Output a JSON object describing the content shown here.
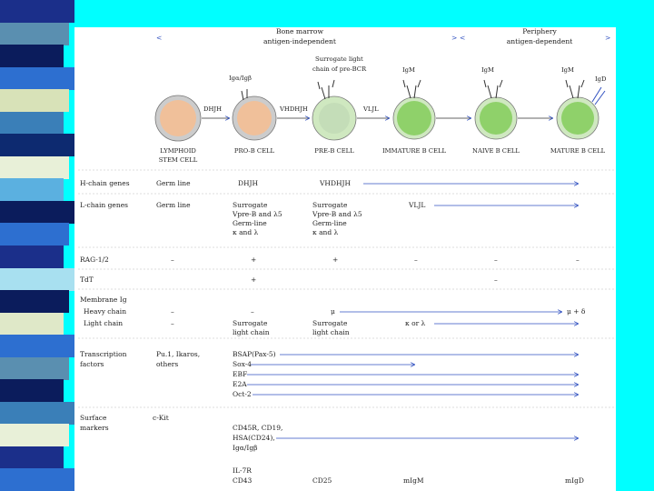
{
  "colors": {
    "background": "#00ffff",
    "panel": "#ffffff",
    "stem_cell": "#f0c09a",
    "b_cell_inner": "#8fd16a",
    "b_cell_ring": "#cfe8c0",
    "line": "#3050c0",
    "stripes": [
      "#1b2f8a",
      "#5a8fb0",
      "#0b1c5c",
      "#2d6fd0",
      "#d8e2b8",
      "#3a7fb8",
      "#0d2a70",
      "#e8f0d8",
      "#5bb0e0",
      "#0b1c5c",
      "#2d6fd0",
      "#1b2f8a",
      "#a8e0f0",
      "#0b1c5c",
      "#dfe8c8",
      "#2d6fd0",
      "#5a8fb0",
      "#0b1c5c",
      "#3a7fb8",
      "#e8f0d8",
      "#1b2f8a",
      "#2d6fd0"
    ]
  },
  "header": {
    "bone_marrow": "Bone marrow",
    "antigen_independent": "antigen-independent",
    "periphery": "Periphery",
    "antigen_dependent": "antigen-dependent"
  },
  "receptors": {
    "ig_alpha_beta": "Igα/Igβ",
    "surrogate": "Surrogate light",
    "surrogate2": "chain of pre-BCR",
    "igm1": "IgM",
    "igm2": "IgM",
    "igm3": "IgM",
    "igd": "IgD"
  },
  "cell_genes": {
    "pro": "DHJH",
    "pre": "VHDHJH",
    "imm": "VLJL"
  },
  "cells": [
    {
      "label1": "LYMPHOID",
      "label2": "STEM CELL"
    },
    {
      "label1": "PRO-B CELL",
      "label2": ""
    },
    {
      "label1": "PRE-B CELL",
      "label2": ""
    },
    {
      "label1": "IMMATURE B CELL",
      "label2": ""
    },
    {
      "label1": "NAIVE B CELL",
      "label2": ""
    },
    {
      "label1": "MATURE B CELL",
      "label2": ""
    }
  ],
  "rows": {
    "h_genes": {
      "label": "H-chain genes",
      "c1": "Germ line",
      "c2": "DHJH",
      "c3": "VHDHJH"
    },
    "l_genes": {
      "label": "L-chain genes",
      "c1": "Germ line",
      "c2a": "Surrogate",
      "c2b": "Vpre-B and λ5",
      "c2c": "Germ-line",
      "c2d": "κ and λ",
      "c3a": "Surrogate",
      "c3b": "Vpre-B and λ5",
      "c3c": "Germ-line",
      "c3d": "κ and λ",
      "c4": "VLJL"
    },
    "rag": {
      "label": "RAG-1/2",
      "c1": "–",
      "c2": "+",
      "c3": "+",
      "c4": "–",
      "c5": "–",
      "c6": "–"
    },
    "tdt": {
      "label": "TdT",
      "c2": "+",
      "c4": "–",
      "c6": "–"
    },
    "mem": {
      "label1": "Membrane Ig",
      "label2": "Heavy chain",
      "label3": "Light chain",
      "h1": "–",
      "h2": "–",
      "h3": "μ",
      "h_end": "μ + δ",
      "l1": "–",
      "l2a": "Surrogate",
      "l2b": "light chain",
      "l3a": "Surrogate",
      "l3b": "light chain",
      "l4": "κ or λ"
    },
    "tf": {
      "label1": "Transcription",
      "label2": "factors",
      "c1a": "Pu.1, Ikaros,",
      "c1b": "others",
      "f1": "BSAP(Pax-5)",
      "f2": "Sox-4",
      "f3": "EBF",
      "f4": "E2A",
      "f5": "Oct-2"
    },
    "surface": {
      "label1": "Surface",
      "label2": "markers",
      "c1": "c-Kit",
      "m1": "CD45R, CD19,",
      "m2": "HSA(CD24),",
      "m3": "Igα/Igβ",
      "m4": "IL-7R",
      "m5": "CD43",
      "m6": "CD25",
      "m7": "mIgM",
      "m8": "mIgD"
    }
  }
}
